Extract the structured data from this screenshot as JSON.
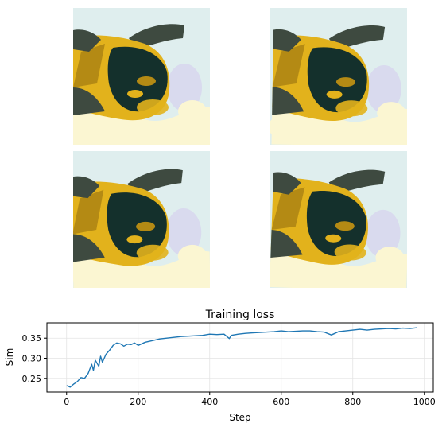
{
  "thumbnails": [
    {
      "name": "generated-sample-1",
      "variant": 0
    },
    {
      "name": "generated-sample-2",
      "variant": 1
    },
    {
      "name": "generated-sample-3",
      "variant": 2
    },
    {
      "name": "generated-sample-4",
      "variant": 3
    }
  ],
  "colors": {
    "background_tint": "#dfeeee",
    "dark_teal": "#14302c",
    "gray_green": "#3e4a40",
    "gold": "#e2b21c",
    "dark_gold": "#b48a14",
    "cream": "#fbf6d2",
    "lavender": "#d7d4ee",
    "line": "#1f77b4"
  },
  "chart_data": {
    "type": "line",
    "title": "Training loss",
    "xlabel": "Step",
    "ylabel": "Sim",
    "xlim": [
      -55,
      1025
    ],
    "ylim": [
      0.216,
      0.388
    ],
    "xticks": [
      0,
      200,
      400,
      600,
      800,
      1000
    ],
    "yticks": [
      0.25,
      0.3,
      0.35
    ],
    "ytick_labels": [
      "0.25",
      "0.30",
      "0.35"
    ],
    "grid": true,
    "series": [
      {
        "x": [
          0,
          10,
          20,
          30,
          40,
          50,
          60,
          70,
          75,
          80,
          90,
          95,
          100,
          110,
          120,
          130,
          140,
          150,
          160,
          170,
          180,
          190,
          200,
          220,
          240,
          260,
          280,
          300,
          320,
          340,
          360,
          380,
          400,
          420,
          440,
          455,
          460,
          480,
          500,
          520,
          540,
          560,
          580,
          600,
          620,
          640,
          660,
          680,
          700,
          720,
          740,
          750,
          760,
          780,
          800,
          820,
          840,
          860,
          880,
          900,
          920,
          940,
          960,
          980
        ],
        "y": [
          0.232,
          0.228,
          0.236,
          0.242,
          0.252,
          0.25,
          0.262,
          0.285,
          0.27,
          0.295,
          0.28,
          0.305,
          0.29,
          0.31,
          0.32,
          0.332,
          0.338,
          0.336,
          0.33,
          0.335,
          0.334,
          0.338,
          0.332,
          0.34,
          0.344,
          0.348,
          0.35,
          0.352,
          0.354,
          0.355,
          0.356,
          0.357,
          0.36,
          0.359,
          0.36,
          0.349,
          0.357,
          0.36,
          0.362,
          0.363,
          0.364,
          0.365,
          0.366,
          0.368,
          0.366,
          0.367,
          0.368,
          0.368,
          0.366,
          0.365,
          0.358,
          0.362,
          0.366,
          0.368,
          0.37,
          0.372,
          0.37,
          0.372,
          0.373,
          0.374,
          0.373,
          0.375,
          0.374,
          0.376
        ]
      }
    ]
  }
}
